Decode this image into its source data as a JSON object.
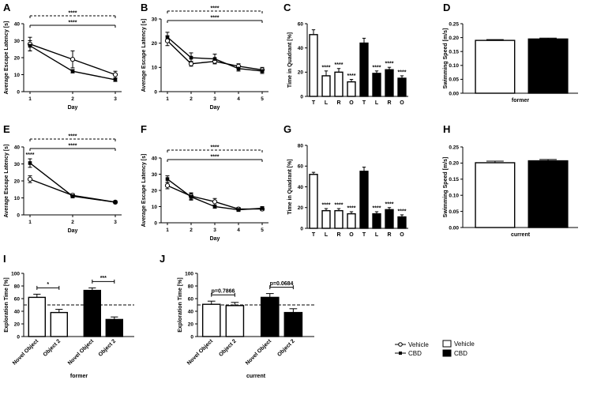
{
  "colors": {
    "vehicle": "#ffffff",
    "cbd": "#000000",
    "line": "#000000"
  },
  "legend": {
    "vehicle": "Vehicle",
    "cbd": "CBD",
    "vehicle_bar": "Vehicle",
    "cbd_bar": "CBD"
  },
  "chart_data": [
    {
      "id": "A",
      "type": "line",
      "ylabel": "Average Escape Latency [s]",
      "xlabel": "Day",
      "x": [
        1,
        2,
        3
      ],
      "ylim": [
        0,
        40
      ],
      "yticks": [
        0,
        10,
        20,
        30,
        40
      ],
      "series": [
        {
          "name": "Vehicle",
          "values": [
            28,
            19,
            10
          ],
          "err": [
            4,
            5,
            2
          ]
        },
        {
          "name": "CBD",
          "values": [
            27,
            12,
            7
          ],
          "err": [
            3,
            1,
            1
          ]
        }
      ],
      "sig": [
        {
          "label": "****",
          "style": "dashed",
          "from": 1,
          "to": 3,
          "level": 0
        },
        {
          "label": "****",
          "style": "solid",
          "from": 1,
          "to": 3,
          "level": 1
        }
      ]
    },
    {
      "id": "B",
      "type": "line",
      "ylabel": "Average Escape Latency [s]",
      "xlabel": "Day",
      "x": [
        1,
        2,
        3,
        4,
        5
      ],
      "ylim": [
        0,
        30
      ],
      "yticks": [
        0,
        10,
        20,
        30
      ],
      "series": [
        {
          "name": "Vehicle",
          "values": [
            21,
            11.5,
            12.5,
            10.5,
            9
          ],
          "err": [
            2,
            1,
            1,
            1,
            1
          ]
        },
        {
          "name": "CBD",
          "values": [
            22.5,
            14,
            13.5,
            9.5,
            8.5
          ],
          "err": [
            2,
            2,
            2,
            1,
            1
          ]
        }
      ],
      "sig": [
        {
          "label": "****",
          "style": "dashed",
          "from": 1,
          "to": 5,
          "level": 0
        },
        {
          "label": "****",
          "style": "solid",
          "from": 1,
          "to": 5,
          "level": 1
        }
      ]
    },
    {
      "id": "C",
      "type": "bar",
      "ylabel": "Time in Quadrant [%]",
      "categories": [
        "T",
        "L",
        "R",
        "O",
        "T",
        "L",
        "R",
        "O"
      ],
      "ylim": [
        0,
        60
      ],
      "yticks": [
        0,
        20,
        40,
        60
      ],
      "values": [
        51,
        17,
        20,
        12,
        44,
        19,
        22,
        15
      ],
      "err": [
        4,
        4,
        3,
        2,
        4,
        2,
        2,
        2
      ],
      "groups": [
        "Vehicle",
        "Vehicle",
        "Vehicle",
        "Vehicle",
        "CBD",
        "CBD",
        "CBD",
        "CBD"
      ],
      "labels": [
        "",
        "****",
        "****",
        "****",
        "",
        "****",
        "****",
        "****"
      ]
    },
    {
      "id": "D",
      "type": "bar",
      "ylabel": "Swimming Speed [m/s]",
      "xlabel": "former",
      "categories": [
        "Vehicle",
        "CBD"
      ],
      "ylim": [
        0,
        0.25
      ],
      "yticks": [
        "0.00",
        "0.05",
        "0.10",
        "0.15",
        "0.20",
        "0.25"
      ],
      "values": [
        0.19,
        0.195
      ],
      "err": [
        0.003,
        0.003
      ],
      "groups": [
        "Vehicle",
        "CBD"
      ]
    },
    {
      "id": "E",
      "type": "line",
      "ylabel": "Average Escape Latency [s]",
      "xlabel": "Day",
      "x": [
        1,
        2,
        3
      ],
      "ylim": [
        0,
        40
      ],
      "yticks": [
        0,
        10,
        20,
        30,
        40
      ],
      "series": [
        {
          "name": "Vehicle",
          "values": [
            21,
            11.5,
            7.5
          ],
          "err": [
            2,
            1,
            0.5
          ]
        },
        {
          "name": "CBD",
          "values": [
            30.5,
            11,
            7.5
          ],
          "err": [
            2.5,
            1,
            0.5
          ]
        }
      ],
      "point_label": {
        "label": "****",
        "x": 1
      },
      "sig": [
        {
          "label": "****",
          "style": "dashed",
          "from": 1,
          "to": 3,
          "level": 0
        },
        {
          "label": "****",
          "style": "solid",
          "from": 1,
          "to": 3,
          "level": 1
        }
      ]
    },
    {
      "id": "F",
      "type": "line",
      "ylabel": "Average Escape Latency [s]",
      "xlabel": "Day",
      "x": [
        1,
        2,
        3,
        4,
        5
      ],
      "ylim": [
        0,
        40
      ],
      "yticks": [
        0,
        10,
        20,
        30,
        40
      ],
      "series": [
        {
          "name": "Vehicle",
          "values": [
            23,
            16.5,
            13,
            8.5,
            8.5
          ],
          "err": [
            2,
            2,
            2,
            1,
            1
          ]
        },
        {
          "name": "CBD",
          "values": [
            27,
            16,
            10,
            8,
            9
          ],
          "err": [
            2,
            2,
            1,
            1,
            1
          ]
        }
      ],
      "sig": [
        {
          "label": "****",
          "style": "dashed",
          "from": 1,
          "to": 5,
          "level": 0
        },
        {
          "label": "****",
          "style": "solid",
          "from": 1,
          "to": 5,
          "level": 1
        }
      ]
    },
    {
      "id": "G",
      "type": "bar",
      "ylabel": "Time in Quadrant [%]",
      "categories": [
        "T",
        "L",
        "R",
        "O",
        "T",
        "L",
        "R",
        "O"
      ],
      "ylim": [
        0,
        80
      ],
      "yticks": [
        0,
        20,
        40,
        60,
        80
      ],
      "values": [
        52,
        17,
        17,
        14,
        55,
        14,
        18,
        11
      ],
      "err": [
        2,
        2,
        2,
        2,
        4,
        2,
        2,
        2
      ],
      "groups": [
        "Vehicle",
        "Vehicle",
        "Vehicle",
        "Vehicle",
        "CBD",
        "CBD",
        "CBD",
        "CBD"
      ],
      "labels": [
        "",
        "****",
        "****",
        "****",
        "",
        "****",
        "****",
        "****"
      ]
    },
    {
      "id": "H",
      "type": "bar",
      "ylabel": "Swimming Speed [m/s]",
      "xlabel": "current",
      "categories": [
        "Vehicle",
        "CBD"
      ],
      "ylim": [
        0,
        0.25
      ],
      "yticks": [
        "0.00",
        "0.05",
        "0.10",
        "0.15",
        "0.20",
        "0.25"
      ],
      "values": [
        0.201,
        0.207
      ],
      "err": [
        0.005,
        0.004
      ],
      "groups": [
        "Vehicle",
        "CBD"
      ]
    },
    {
      "id": "I",
      "type": "bar",
      "ylabel": "Exploration Time [%]",
      "xlabel": "former",
      "categories": [
        "Novel Object",
        "Object 2",
        "Novel Object",
        "Object 2"
      ],
      "ylim": [
        0,
        100
      ],
      "yticks": [
        0,
        20,
        40,
        60,
        80,
        100
      ],
      "values": [
        62,
        38,
        73,
        27
      ],
      "err": [
        5,
        5,
        4,
        4
      ],
      "groups": [
        "Vehicle",
        "Vehicle",
        "CBD",
        "CBD"
      ],
      "refline": 50,
      "brackets": [
        {
          "label": "*",
          "a": 0,
          "b": 1
        },
        {
          "label": "***",
          "a": 2,
          "b": 3
        }
      ]
    },
    {
      "id": "J",
      "type": "bar",
      "ylabel": "Exploration Time [%]",
      "xlabel": "current",
      "categories": [
        "Novel Object",
        "Object 2",
        "Novel Object",
        "Object 2"
      ],
      "ylim": [
        0,
        100
      ],
      "yticks": [
        0,
        20,
        40,
        60,
        80,
        100
      ],
      "values": [
        51,
        49,
        62,
        38
      ],
      "err": [
        5,
        5,
        6,
        6
      ],
      "groups": [
        "Vehicle",
        "Vehicle",
        "CBD",
        "CBD"
      ],
      "refline": 50,
      "brackets": [
        {
          "label": "p=0.7866",
          "a": 0,
          "b": 1
        },
        {
          "label": "p=0.0684",
          "a": 2,
          "b": 3
        }
      ]
    }
  ]
}
